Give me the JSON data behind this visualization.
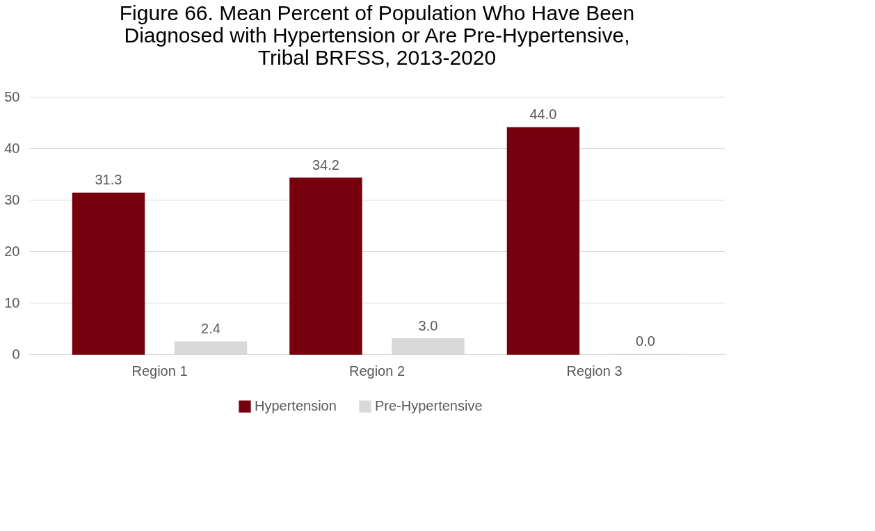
{
  "chart_data": {
    "type": "bar",
    "title": "Figure 66. Mean Percent of Population Who Have Been Diagnosed with Hypertension or Are Pre-Hypertensive, Tribal BRFSS, 2013-2020",
    "categories": [
      "Region 1",
      "Region 2",
      "Region 3"
    ],
    "series": [
      {
        "name": "Hypertension",
        "color": "#76000d",
        "values": [
          31.3,
          34.2,
          44.0
        ],
        "value_labels": [
          "31.3",
          "34.2",
          "44.0"
        ]
      },
      {
        "name": "Pre-Hypertensive",
        "color": "#d9d9d9",
        "values": [
          2.4,
          3.0,
          0.0
        ],
        "value_labels": [
          "2.4",
          "3.0",
          "0.0"
        ]
      }
    ],
    "ylim": [
      0,
      50
    ],
    "yticks": [
      0,
      10,
      20,
      30,
      40,
      50
    ],
    "grid": "y",
    "legend": "bottom"
  }
}
